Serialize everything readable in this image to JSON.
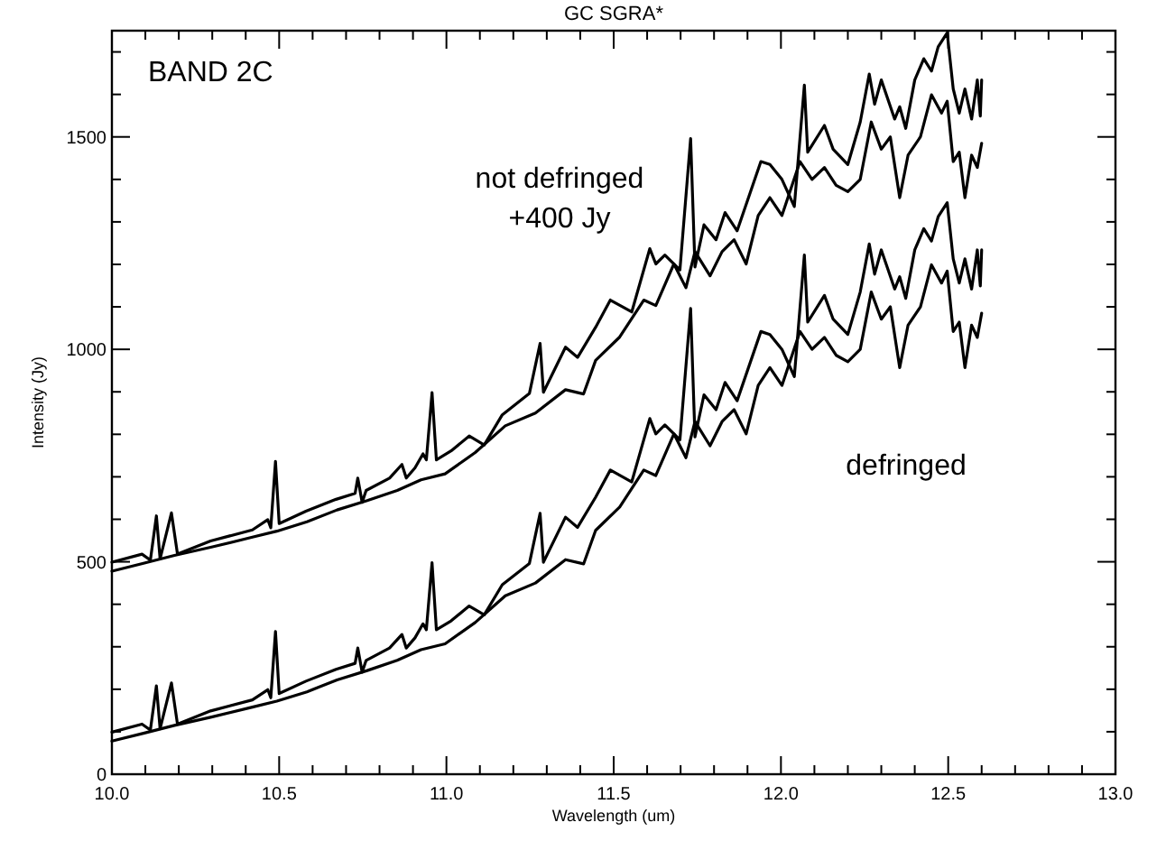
{
  "chart_data": {
    "type": "line",
    "title": "GC SGRA*",
    "xlabel": "Wavelength (um)",
    "ylabel": "Intensity (Jy)",
    "annotations": [
      "BAND 2C",
      "not defringed\n+400 Jy",
      "defringed"
    ],
    "xlim": [
      10.0,
      13.0
    ],
    "ylim": [
      0,
      1750
    ],
    "xticks": [
      {
        "value": 10.0,
        "label": "10.0"
      },
      {
        "value": 10.1,
        "label": null
      },
      {
        "value": 10.2,
        "label": null
      },
      {
        "value": 10.3,
        "label": null
      },
      {
        "value": 10.4,
        "label": null
      },
      {
        "value": 10.5,
        "label": "10.5"
      },
      {
        "value": 10.6,
        "label": null
      },
      {
        "value": 10.7,
        "label": null
      },
      {
        "value": 10.8,
        "label": null
      },
      {
        "value": 10.9,
        "label": null
      },
      {
        "value": 11.0,
        "label": "11.0"
      },
      {
        "value": 11.1,
        "label": null
      },
      {
        "value": 11.2,
        "label": null
      },
      {
        "value": 11.3,
        "label": null
      },
      {
        "value": 11.4,
        "label": null
      },
      {
        "value": 11.5,
        "label": "11.5"
      },
      {
        "value": 11.6,
        "label": null
      },
      {
        "value": 11.7,
        "label": null
      },
      {
        "value": 11.8,
        "label": null
      },
      {
        "value": 11.9,
        "label": null
      },
      {
        "value": 12.0,
        "label": "12.0"
      },
      {
        "value": 12.1,
        "label": null
      },
      {
        "value": 12.2,
        "label": null
      },
      {
        "value": 12.3,
        "label": null
      },
      {
        "value": 12.4,
        "label": null
      },
      {
        "value": 12.5,
        "label": "12.5"
      },
      {
        "value": 12.6,
        "label": null
      },
      {
        "value": 12.7,
        "label": null
      },
      {
        "value": 12.8,
        "label": null
      },
      {
        "value": 12.9,
        "label": null
      },
      {
        "value": 13.0,
        "label": "13.0"
      }
    ],
    "yticks": [
      0,
      {
        "value": 100,
        "label": null
      },
      {
        "value": 200,
        "label": null
      },
      {
        "value": 300,
        "label": null
      },
      {
        "value": 400,
        "label": null
      },
      500,
      {
        "value": 600,
        "label": null
      },
      {
        "value": 700,
        "label": null
      },
      {
        "value": 800,
        "label": null
      },
      {
        "value": 900,
        "label": null
      },
      1000,
      {
        "value": 1100,
        "label": null
      },
      {
        "value": 1200,
        "label": null
      },
      {
        "value": 1300,
        "label": null
      },
      {
        "value": 1400,
        "label": null
      },
      1500,
      {
        "value": 1600,
        "label": null
      },
      {
        "value": 1700,
        "label": null
      }
    ],
    "grid": false,
    "marker": "none",
    "line_style": "solid",
    "series": [
      {
        "color": "#000000",
        "x": [
          10.0,
          10.09,
          10.115,
          10.133,
          10.144,
          10.178,
          10.196,
          10.295,
          10.42,
          10.466,
          10.475,
          10.489,
          10.5,
          10.58,
          10.67,
          10.727,
          10.735,
          10.748,
          10.76,
          10.83,
          10.867,
          10.88,
          10.906,
          10.93,
          10.94,
          10.957,
          10.97,
          11.014,
          11.068,
          11.113,
          11.167,
          11.248,
          11.28,
          11.29,
          11.356,
          11.392,
          11.446,
          11.49,
          11.554,
          11.608,
          11.626,
          11.653,
          11.698,
          11.73,
          11.743,
          11.77,
          11.806,
          11.833,
          11.869,
          11.94,
          11.967,
          12.003,
          12.04,
          12.07,
          12.08,
          12.13,
          12.156,
          12.2,
          12.237,
          12.264,
          12.28,
          12.3,
          12.34,
          12.355,
          12.373,
          12.4,
          12.427,
          12.45,
          12.47,
          12.497,
          12.515,
          12.533,
          12.55,
          12.57,
          12.587,
          12.596,
          12.6
        ],
        "values": [
          499,
          518,
          504,
          608,
          507,
          615,
          518,
          549,
          575,
          599,
          580,
          736,
          590,
          619,
          647,
          661,
          697,
          640,
          668,
          697,
          729,
          697,
          721,
          754,
          740,
          898,
          740,
          761,
          796,
          775,
          846,
          896,
          1014,
          899,
          1005,
          981,
          1052,
          1116,
          1088,
          1237,
          1201,
          1222,
          1187,
          1496,
          1194,
          1293,
          1258,
          1322,
          1279,
          1442,
          1435,
          1400,
          1336,
          1622,
          1464,
          1527,
          1471,
          1435,
          1535,
          1648,
          1577,
          1634,
          1542,
          1571,
          1520,
          1634,
          1684,
          1655,
          1712,
          1745,
          1613,
          1556,
          1613,
          1542,
          1634,
          1549,
          1634
        ]
      },
      {
        "color": "#000000",
        "x": [
          10.0,
          10.097,
          10.187,
          10.295,
          10.42,
          10.493,
          10.583,
          10.673,
          10.763,
          10.853,
          10.924,
          10.996,
          11.086,
          11.176,
          11.266,
          11.356,
          11.41,
          11.446,
          11.518,
          11.59,
          11.626,
          11.68,
          11.716,
          11.743,
          11.788,
          11.824,
          11.86,
          11.896,
          11.932,
          11.967,
          12.003,
          12.057,
          12.093,
          12.13,
          12.165,
          12.2,
          12.237,
          12.27,
          12.3,
          12.327,
          12.355,
          12.38,
          12.417,
          12.45,
          12.48,
          12.497,
          12.515,
          12.533,
          12.55,
          12.57,
          12.587,
          12.6
        ],
        "values": [
          478,
          497,
          515,
          534,
          558,
          572,
          594,
          622,
          644,
          668,
          693,
          707,
          757,
          820,
          850,
          905,
          895,
          974,
          1029,
          1116,
          1103,
          1201,
          1145,
          1230,
          1173,
          1230,
          1258,
          1201,
          1315,
          1357,
          1315,
          1442,
          1400,
          1428,
          1386,
          1371,
          1400,
          1535,
          1471,
          1500,
          1357,
          1457,
          1500,
          1599,
          1556,
          1584,
          1442,
          1464,
          1357,
          1457,
          1428,
          1485
        ]
      },
      {
        "color": "#000000",
        "x": [
          10.0,
          10.09,
          10.115,
          10.133,
          10.144,
          10.178,
          10.196,
          10.295,
          10.42,
          10.466,
          10.475,
          10.489,
          10.5,
          10.58,
          10.67,
          10.727,
          10.735,
          10.748,
          10.76,
          10.83,
          10.867,
          10.88,
          10.906,
          10.93,
          10.94,
          10.957,
          10.97,
          11.014,
          11.068,
          11.113,
          11.167,
          11.248,
          11.28,
          11.29,
          11.356,
          11.392,
          11.446,
          11.49,
          11.554,
          11.608,
          11.626,
          11.653,
          11.698,
          11.73,
          11.743,
          11.77,
          11.806,
          11.833,
          11.869,
          11.94,
          11.967,
          12.003,
          12.04,
          12.07,
          12.08,
          12.13,
          12.156,
          12.2,
          12.237,
          12.264,
          12.28,
          12.3,
          12.34,
          12.355,
          12.373,
          12.4,
          12.427,
          12.45,
          12.47,
          12.497,
          12.515,
          12.533,
          12.55,
          12.57,
          12.587,
          12.596,
          12.6
        ],
        "values": [
          99,
          118,
          104,
          208,
          107,
          215,
          118,
          149,
          175,
          199,
          180,
          336,
          190,
          219,
          247,
          261,
          297,
          240,
          268,
          297,
          329,
          297,
          321,
          354,
          340,
          498,
          340,
          361,
          396,
          375,
          446,
          496,
          614,
          499,
          605,
          581,
          652,
          716,
          688,
          837,
          801,
          822,
          787,
          1096,
          794,
          893,
          858,
          922,
          879,
          1042,
          1035,
          1000,
          936,
          1222,
          1064,
          1127,
          1071,
          1035,
          1135,
          1248,
          1177,
          1234,
          1142,
          1171,
          1120,
          1234,
          1284,
          1255,
          1312,
          1345,
          1213,
          1156,
          1213,
          1142,
          1234,
          1149,
          1234
        ]
      },
      {
        "color": "#000000",
        "x": [
          10.0,
          10.097,
          10.187,
          10.295,
          10.42,
          10.493,
          10.583,
          10.673,
          10.763,
          10.853,
          10.924,
          10.996,
          11.086,
          11.176,
          11.266,
          11.356,
          11.41,
          11.446,
          11.518,
          11.59,
          11.626,
          11.68,
          11.716,
          11.743,
          11.788,
          11.824,
          11.86,
          11.896,
          11.932,
          11.967,
          12.003,
          12.057,
          12.093,
          12.13,
          12.165,
          12.2,
          12.237,
          12.27,
          12.3,
          12.327,
          12.355,
          12.38,
          12.417,
          12.45,
          12.48,
          12.497,
          12.515,
          12.533,
          12.55,
          12.57,
          12.587,
          12.6
        ],
        "values": [
          78,
          97,
          115,
          134,
          158,
          172,
          194,
          222,
          244,
          268,
          293,
          307,
          357,
          420,
          450,
          505,
          495,
          574,
          629,
          716,
          703,
          801,
          745,
          830,
          773,
          830,
          858,
          801,
          915,
          957,
          915,
          1042,
          1000,
          1028,
          986,
          971,
          1000,
          1135,
          1071,
          1100,
          957,
          1057,
          1100,
          1199,
          1156,
          1184,
          1042,
          1064,
          957,
          1057,
          1028,
          1085
        ]
      }
    ]
  }
}
